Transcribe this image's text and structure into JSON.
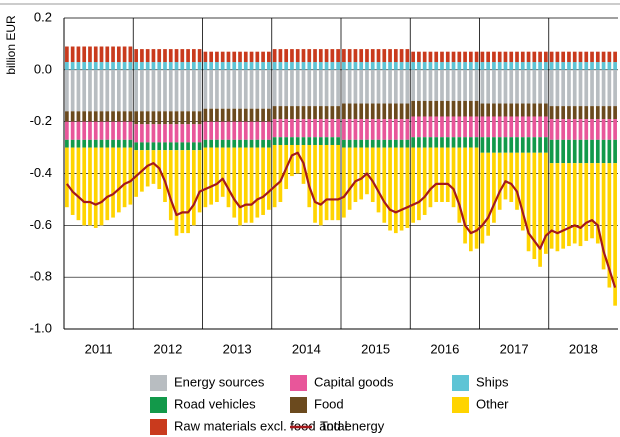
{
  "chart_data": {
    "type": "stacked_bar_line",
    "y_label": "billion EUR",
    "ylim": [
      -1.0,
      0.2
    ],
    "yticks": [
      0.2,
      {
        "value": 0,
        "label": "0.0"
      },
      -0.2,
      -0.4,
      -0.6,
      -0.8,
      {
        "value": -1,
        "label": "-1.0"
      }
    ],
    "grid": true,
    "categories": [
      null,
      null,
      null,
      null,
      null,
      null,
      "2011",
      null,
      null,
      null,
      null,
      null,
      null,
      null,
      null,
      null,
      null,
      null,
      "2012",
      null,
      null,
      null,
      null,
      null,
      null,
      null,
      null,
      null,
      null,
      null,
      "2013",
      null,
      null,
      null,
      null,
      null,
      null,
      null,
      null,
      null,
      null,
      null,
      "2014",
      null,
      null,
      null,
      null,
      null,
      null,
      null,
      null,
      null,
      null,
      null,
      "2015",
      null,
      null,
      null,
      null,
      null,
      null,
      null,
      null,
      null,
      null,
      null,
      "2016",
      null,
      null,
      null,
      null,
      null,
      null,
      null,
      null,
      null,
      null,
      null,
      "2017",
      null,
      null,
      null,
      null,
      null,
      null,
      null,
      null,
      null,
      null,
      null,
      "2018",
      null,
      null,
      null,
      null,
      null
    ],
    "series": [
      {
        "name": "Energy sources",
        "color": "#b8bdc1",
        "values": [
          -0.16,
          -0.16,
          -0.16,
          -0.16,
          -0.16,
          -0.16,
          -0.16,
          -0.16,
          -0.16,
          -0.16,
          -0.16,
          -0.16,
          -0.16,
          -0.16,
          -0.16,
          -0.16,
          -0.16,
          -0.16,
          -0.16,
          -0.16,
          -0.16,
          -0.16,
          -0.16,
          -0.16,
          -0.15,
          -0.15,
          -0.15,
          -0.15,
          -0.15,
          -0.15,
          -0.15,
          -0.15,
          -0.15,
          -0.15,
          -0.15,
          -0.15,
          -0.14,
          -0.14,
          -0.14,
          -0.14,
          -0.14,
          -0.14,
          -0.14,
          -0.14,
          -0.14,
          -0.14,
          -0.14,
          -0.14,
          -0.13,
          -0.13,
          -0.13,
          -0.13,
          -0.13,
          -0.13,
          -0.13,
          -0.13,
          -0.13,
          -0.13,
          -0.13,
          -0.13,
          -0.12,
          -0.12,
          -0.12,
          -0.12,
          -0.12,
          -0.12,
          -0.12,
          -0.12,
          -0.12,
          -0.12,
          -0.12,
          -0.12,
          -0.13,
          -0.13,
          -0.13,
          -0.13,
          -0.13,
          -0.13,
          -0.13,
          -0.13,
          -0.13,
          -0.13,
          -0.13,
          -0.13,
          -0.14,
          -0.14,
          -0.14,
          -0.14,
          -0.14,
          -0.14,
          -0.14,
          -0.14,
          -0.14,
          -0.14,
          -0.14,
          -0.14
        ]
      },
      {
        "name": "Capital goods",
        "color": "#e8569a",
        "values": [
          -0.07,
          -0.07,
          -0.07,
          -0.07,
          -0.07,
          -0.07,
          -0.07,
          -0.07,
          -0.07,
          -0.07,
          -0.07,
          -0.07,
          -0.07,
          -0.07,
          -0.07,
          -0.07,
          -0.07,
          -0.07,
          -0.07,
          -0.07,
          -0.07,
          -0.07,
          -0.07,
          -0.07,
          -0.07,
          -0.07,
          -0.07,
          -0.07,
          -0.07,
          -0.07,
          -0.07,
          -0.07,
          -0.07,
          -0.07,
          -0.07,
          -0.07,
          -0.07,
          -0.07,
          -0.07,
          -0.07,
          -0.07,
          -0.07,
          -0.07,
          -0.07,
          -0.07,
          -0.07,
          -0.07,
          -0.07,
          -0.08,
          -0.08,
          -0.08,
          -0.08,
          -0.08,
          -0.08,
          -0.08,
          -0.08,
          -0.08,
          -0.08,
          -0.08,
          -0.08,
          -0.08,
          -0.08,
          -0.08,
          -0.08,
          -0.08,
          -0.08,
          -0.08,
          -0.08,
          -0.08,
          -0.08,
          -0.08,
          -0.08,
          -0.08,
          -0.08,
          -0.08,
          -0.08,
          -0.08,
          -0.08,
          -0.08,
          -0.08,
          -0.08,
          -0.08,
          -0.08,
          -0.08,
          -0.08,
          -0.08,
          -0.08,
          -0.08,
          -0.08,
          -0.08,
          -0.08,
          -0.08,
          -0.08,
          -0.08,
          -0.08,
          -0.08
        ]
      },
      {
        "name": "Ships",
        "color": "#5ec4d5",
        "values": [
          0.03,
          0.03,
          0.03,
          0.03,
          0.03,
          0.03,
          0.03,
          0.03,
          0.03,
          0.03,
          0.03,
          0.03,
          0.03,
          0.03,
          0.03,
          0.03,
          0.03,
          0.03,
          0.03,
          0.03,
          0.03,
          0.03,
          0.03,
          0.03,
          0.03,
          0.03,
          0.03,
          0.03,
          0.03,
          0.03,
          0.03,
          0.03,
          0.03,
          0.03,
          0.03,
          0.03,
          0.03,
          0.03,
          0.03,
          0.03,
          0.03,
          0.03,
          0.03,
          0.03,
          0.03,
          0.03,
          0.03,
          0.03,
          0.03,
          0.03,
          0.03,
          0.03,
          0.03,
          0.03,
          0.03,
          0.03,
          0.03,
          0.03,
          0.03,
          0.03,
          0.03,
          0.03,
          0.03,
          0.03,
          0.03,
          0.03,
          0.03,
          0.03,
          0.03,
          0.03,
          0.03,
          0.03,
          0.03,
          0.03,
          0.03,
          0.03,
          0.03,
          0.03,
          0.03,
          0.03,
          0.03,
          0.03,
          0.03,
          0.03,
          0.03,
          0.03,
          0.03,
          0.03,
          0.03,
          0.03,
          0.03,
          0.03,
          0.03,
          0.03,
          0.03,
          0.03
        ]
      },
      {
        "name": "Road vehicles",
        "color": "#12994a",
        "values": [
          -0.03,
          -0.03,
          -0.03,
          -0.03,
          -0.03,
          -0.03,
          -0.03,
          -0.03,
          -0.03,
          -0.03,
          -0.03,
          -0.03,
          -0.03,
          -0.03,
          -0.03,
          -0.03,
          -0.03,
          -0.03,
          -0.03,
          -0.03,
          -0.03,
          -0.03,
          -0.03,
          -0.03,
          -0.03,
          -0.03,
          -0.03,
          -0.03,
          -0.03,
          -0.03,
          -0.03,
          -0.03,
          -0.03,
          -0.03,
          -0.03,
          -0.03,
          -0.03,
          -0.03,
          -0.03,
          -0.03,
          -0.03,
          -0.03,
          -0.03,
          -0.03,
          -0.03,
          -0.03,
          -0.03,
          -0.03,
          -0.03,
          -0.03,
          -0.03,
          -0.03,
          -0.03,
          -0.03,
          -0.03,
          -0.03,
          -0.03,
          -0.03,
          -0.03,
          -0.03,
          -0.04,
          -0.04,
          -0.04,
          -0.04,
          -0.04,
          -0.04,
          -0.04,
          -0.04,
          -0.04,
          -0.04,
          -0.04,
          -0.04,
          -0.06,
          -0.06,
          -0.06,
          -0.06,
          -0.06,
          -0.06,
          -0.06,
          -0.06,
          -0.06,
          -0.06,
          -0.06,
          -0.06,
          -0.09,
          -0.09,
          -0.09,
          -0.09,
          -0.09,
          -0.09,
          -0.09,
          -0.09,
          -0.09,
          -0.09,
          -0.09,
          -0.09
        ]
      },
      {
        "name": "Food",
        "color": "#6b4a1e",
        "values": [
          -0.04,
          -0.04,
          -0.04,
          -0.04,
          -0.04,
          -0.04,
          -0.04,
          -0.04,
          -0.04,
          -0.04,
          -0.04,
          -0.04,
          -0.05,
          -0.05,
          -0.05,
          -0.05,
          -0.05,
          -0.05,
          -0.05,
          -0.05,
          -0.05,
          -0.05,
          -0.05,
          -0.05,
          -0.05,
          -0.05,
          -0.05,
          -0.05,
          -0.05,
          -0.05,
          -0.05,
          -0.05,
          -0.05,
          -0.05,
          -0.05,
          -0.05,
          -0.05,
          -0.05,
          -0.05,
          -0.05,
          -0.05,
          -0.05,
          -0.05,
          -0.05,
          -0.05,
          -0.05,
          -0.05,
          -0.05,
          -0.06,
          -0.06,
          -0.06,
          -0.06,
          -0.06,
          -0.06,
          -0.06,
          -0.06,
          -0.06,
          -0.06,
          -0.06,
          -0.06,
          -0.06,
          -0.06,
          -0.06,
          -0.06,
          -0.06,
          -0.06,
          -0.06,
          -0.06,
          -0.06,
          -0.06,
          -0.06,
          -0.06,
          -0.05,
          -0.05,
          -0.05,
          -0.05,
          -0.05,
          -0.05,
          -0.05,
          -0.05,
          -0.05,
          -0.05,
          -0.05,
          -0.05,
          -0.05,
          -0.05,
          -0.05,
          -0.05,
          -0.05,
          -0.05,
          -0.05,
          -0.05,
          -0.05,
          -0.05,
          -0.05,
          -0.05
        ]
      },
      {
        "name": "Other",
        "color": "#ffd400",
        "values": [
          -0.23,
          -0.26,
          -0.28,
          -0.3,
          -0.3,
          -0.31,
          -0.3,
          -0.28,
          -0.27,
          -0.25,
          -0.23,
          -0.22,
          -0.18,
          -0.16,
          -0.14,
          -0.13,
          -0.15,
          -0.2,
          -0.27,
          -0.33,
          -0.32,
          -0.32,
          -0.29,
          -0.24,
          -0.23,
          -0.22,
          -0.21,
          -0.19,
          -0.23,
          -0.27,
          -0.3,
          -0.29,
          -0.29,
          -0.27,
          -0.26,
          -0.24,
          -0.24,
          -0.22,
          -0.17,
          -0.12,
          -0.11,
          -0.15,
          -0.24,
          -0.3,
          -0.31,
          -0.29,
          -0.29,
          -0.29,
          -0.27,
          -0.24,
          -0.21,
          -0.2,
          -0.18,
          -0.21,
          -0.25,
          -0.29,
          -0.32,
          -0.33,
          -0.32,
          -0.31,
          -0.29,
          -0.28,
          -0.26,
          -0.23,
          -0.21,
          -0.21,
          -0.21,
          -0.23,
          -0.29,
          -0.37,
          -0.4,
          -0.39,
          -0.35,
          -0.32,
          -0.27,
          -0.22,
          -0.18,
          -0.19,
          -0.22,
          -0.3,
          -0.38,
          -0.41,
          -0.44,
          -0.39,
          -0.33,
          -0.34,
          -0.33,
          -0.32,
          -0.31,
          -0.32,
          -0.3,
          -0.29,
          -0.31,
          -0.41,
          -0.48,
          -0.55
        ]
      },
      {
        "name": "Raw materials excl. food and energy",
        "color": "#c93a1d",
        "values": [
          0.06,
          0.06,
          0.06,
          0.06,
          0.06,
          0.06,
          0.06,
          0.06,
          0.06,
          0.06,
          0.06,
          0.06,
          0.05,
          0.05,
          0.05,
          0.05,
          0.05,
          0.05,
          0.05,
          0.05,
          0.05,
          0.05,
          0.05,
          0.05,
          0.04,
          0.04,
          0.04,
          0.04,
          0.04,
          0.04,
          0.04,
          0.04,
          0.04,
          0.04,
          0.04,
          0.04,
          0.05,
          0.05,
          0.05,
          0.05,
          0.05,
          0.05,
          0.05,
          0.05,
          0.05,
          0.05,
          0.05,
          0.05,
          0.05,
          0.05,
          0.05,
          0.05,
          0.05,
          0.05,
          0.05,
          0.05,
          0.05,
          0.05,
          0.05,
          0.05,
          0.04,
          0.04,
          0.04,
          0.04,
          0.04,
          0.04,
          0.04,
          0.04,
          0.04,
          0.04,
          0.04,
          0.04,
          0.04,
          0.04,
          0.04,
          0.04,
          0.04,
          0.04,
          0.04,
          0.04,
          0.04,
          0.04,
          0.04,
          0.04,
          0.04,
          0.04,
          0.04,
          0.04,
          0.04,
          0.04,
          0.04,
          0.04,
          0.04,
          0.04,
          0.04,
          0.04
        ]
      },
      {
        "name": "Total",
        "color": "#a5191c",
        "type": "line",
        "values": [
          -0.44,
          -0.47,
          -0.49,
          -0.51,
          -0.51,
          -0.52,
          -0.51,
          -0.49,
          -0.48,
          -0.46,
          -0.44,
          -0.43,
          -0.41,
          -0.39,
          -0.37,
          -0.36,
          -0.38,
          -0.43,
          -0.5,
          -0.56,
          -0.55,
          -0.55,
          -0.52,
          -0.47,
          -0.46,
          -0.45,
          -0.44,
          -0.42,
          -0.46,
          -0.5,
          -0.53,
          -0.52,
          -0.52,
          -0.5,
          -0.49,
          -0.47,
          -0.45,
          -0.43,
          -0.38,
          -0.33,
          -0.32,
          -0.36,
          -0.45,
          -0.51,
          -0.52,
          -0.5,
          -0.5,
          -0.5,
          -0.49,
          -0.46,
          -0.43,
          -0.42,
          -0.4,
          -0.43,
          -0.47,
          -0.51,
          -0.54,
          -0.55,
          -0.54,
          -0.53,
          -0.52,
          -0.51,
          -0.49,
          -0.46,
          -0.44,
          -0.44,
          -0.44,
          -0.46,
          -0.52,
          -0.6,
          -0.63,
          -0.62,
          -0.6,
          -0.57,
          -0.52,
          -0.47,
          -0.43,
          -0.44,
          -0.47,
          -0.55,
          -0.63,
          -0.66,
          -0.69,
          -0.64,
          -0.62,
          -0.63,
          -0.62,
          -0.61,
          -0.6,
          -0.61,
          -0.59,
          -0.58,
          -0.6,
          -0.7,
          -0.77,
          -0.84
        ]
      }
    ]
  }
}
